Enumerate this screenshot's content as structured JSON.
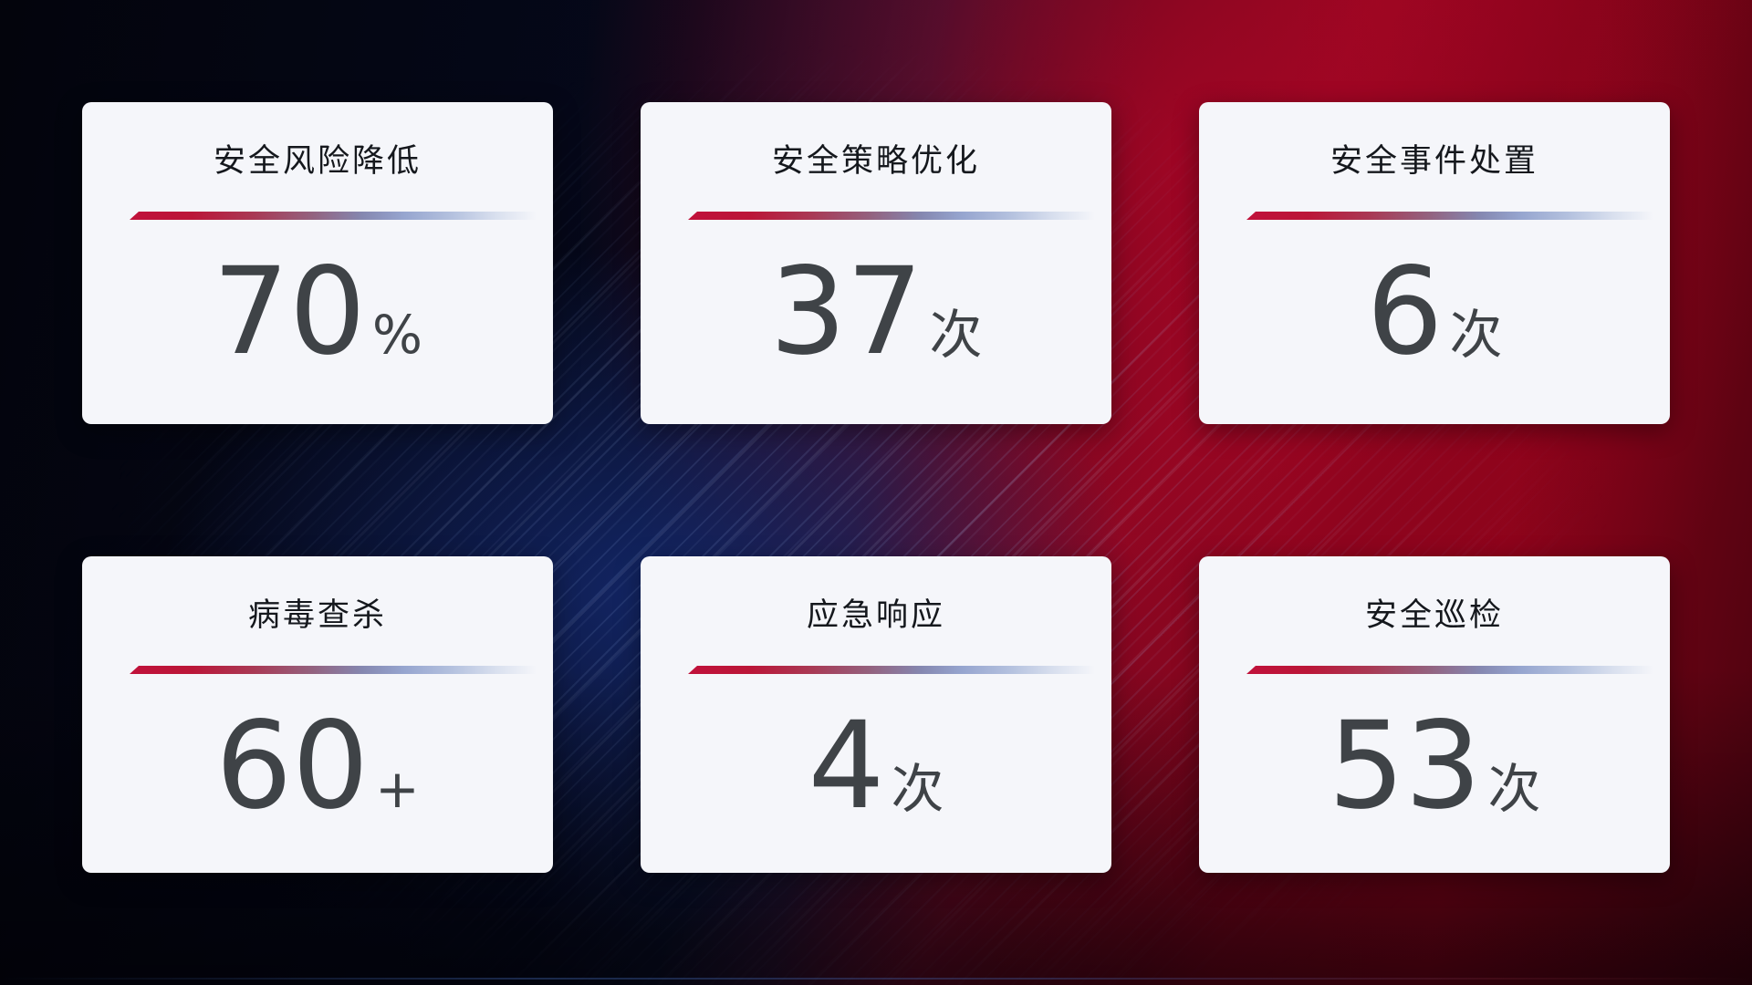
{
  "screen": {
    "description_label": "security-operations-stats-dashboard"
  },
  "colors": {
    "background_navy": "#04050d",
    "background_red": "#860318",
    "blue_glow": "#152a70",
    "card_background": "#f5f6fa",
    "title_text": "#15181d",
    "value_text": "#3f4347",
    "divider_red": "#c0113a",
    "divider_blue": "#96a5cf"
  },
  "cards": [
    {
      "title": "安全风险降低",
      "value": "70",
      "unit": "%"
    },
    {
      "title": "安全策略优化",
      "value": "37",
      "unit": "次"
    },
    {
      "title": "安全事件处置",
      "value": "6",
      "unit": "次"
    },
    {
      "title": "病毒查杀",
      "value": "60",
      "unit": "+"
    },
    {
      "title": "应急响应",
      "value": "4",
      "unit": "次"
    },
    {
      "title": "安全巡检",
      "value": "53",
      "unit": "次"
    }
  ]
}
